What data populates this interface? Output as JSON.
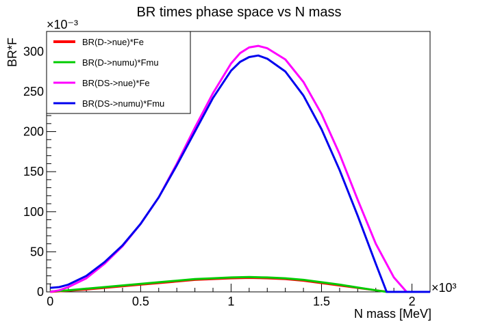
{
  "chart_data": {
    "type": "line",
    "title": "BR times phase space vs N mass",
    "xlabel": "N mass [MeV]",
    "ylabel": "BR*F",
    "x_multiplier_label": "×10³",
    "y_multiplier_label": "×10⁻³",
    "xlim": [
      -0.02,
      2.1
    ],
    "ylim": [
      0,
      325
    ],
    "x_scale_note": "x values in units of 10^3 MeV",
    "y_scale_note": "y values in units of 10^-3",
    "x_ticks": [
      "0",
      "0.5",
      "1",
      "1.5",
      "2"
    ],
    "y_ticks": [
      "0",
      "50",
      "100",
      "150",
      "200",
      "250",
      "300"
    ],
    "legend_position": "top-left",
    "series": [
      {
        "name": "BR(D->nue)*Fe",
        "color": "#ff0000",
        "x": [
          0,
          0.1,
          0.2,
          0.3,
          0.4,
          0.5,
          0.6,
          0.7,
          0.8,
          0.9,
          1.0,
          1.1,
          1.2,
          1.3,
          1.4,
          1.5,
          1.6,
          1.7,
          1.8,
          1.87,
          2.1
        ],
        "y": [
          0,
          1.5,
          3,
          5,
          7,
          9,
          11,
          13,
          15,
          16,
          17,
          17.5,
          17,
          16,
          14,
          11,
          8,
          5,
          2,
          0,
          0
        ]
      },
      {
        "name": "BR(D->numu)*Fmu",
        "color": "#00cc00",
        "x": [
          0,
          0.1,
          0.2,
          0.3,
          0.4,
          0.5,
          0.6,
          0.7,
          0.8,
          0.9,
          1.0,
          1.1,
          1.2,
          1.3,
          1.4,
          1.5,
          1.6,
          1.7,
          1.8,
          1.86,
          2.1
        ],
        "y": [
          0.5,
          2,
          4,
          6,
          8,
          10,
          12,
          14,
          16,
          17,
          18,
          18.5,
          18,
          17,
          15,
          12,
          9,
          5.5,
          2,
          0,
          0
        ]
      },
      {
        "name": "BR(DS->nue)*Fe",
        "color": "#ff00ff",
        "x": [
          0,
          0.05,
          0.1,
          0.2,
          0.3,
          0.4,
          0.5,
          0.6,
          0.7,
          0.8,
          0.9,
          1.0,
          1.05,
          1.1,
          1.15,
          1.2,
          1.3,
          1.4,
          1.5,
          1.6,
          1.7,
          1.8,
          1.9,
          1.97,
          2.1
        ],
        "y": [
          0,
          2,
          6,
          17,
          35,
          57,
          85,
          118,
          160,
          205,
          248,
          285,
          298,
          305,
          307,
          304,
          290,
          262,
          222,
          172,
          115,
          60,
          18,
          0,
          0
        ]
      },
      {
        "name": "BR(DS->numu)*Fmu",
        "color": "#0000ee",
        "x": [
          0,
          0.05,
          0.1,
          0.2,
          0.3,
          0.4,
          0.5,
          0.6,
          0.7,
          0.8,
          0.9,
          1.0,
          1.05,
          1.1,
          1.15,
          1.2,
          1.3,
          1.4,
          1.5,
          1.6,
          1.7,
          1.8,
          1.86,
          2.1
        ],
        "y": [
          5,
          6,
          9,
          20,
          37,
          58,
          85,
          118,
          158,
          200,
          242,
          276,
          287,
          293,
          295,
          291,
          275,
          245,
          203,
          152,
          95,
          35,
          0,
          0
        ]
      }
    ]
  }
}
